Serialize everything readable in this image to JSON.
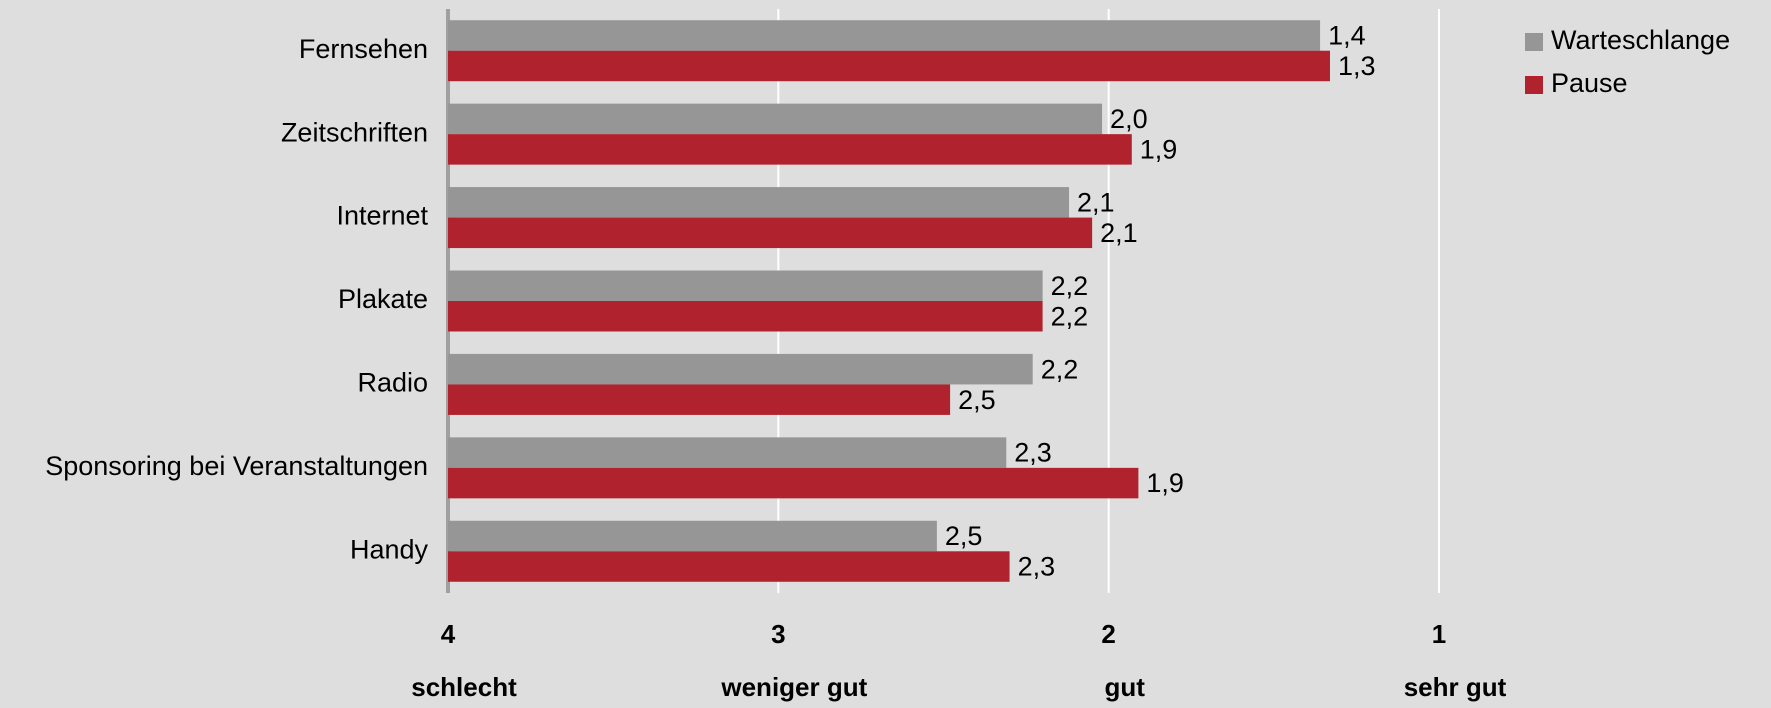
{
  "chart_data": {
    "type": "barh",
    "categories": [
      "Fernsehen",
      "Zeitschriften",
      "Internet",
      "Plakate",
      "Radio",
      "Sponsoring bei Veranstaltungen",
      "Handy"
    ],
    "series": [
      {
        "name": "Warteschlange",
        "color": "#969696",
        "values": [
          1.36,
          2.02,
          2.12,
          2.2,
          2.23,
          2.31,
          2.52
        ],
        "value_labels": [
          "1,4",
          "2,0",
          "2,1",
          "2,2",
          "2,2",
          "2,3",
          "2,5"
        ]
      },
      {
        "name": "Pause",
        "color": "#b0232e",
        "values": [
          1.33,
          1.93,
          2.05,
          2.2,
          2.48,
          1.91,
          2.3
        ],
        "value_labels": [
          "1,3",
          "1,9",
          "2,1",
          "2,2",
          "2,5",
          "1,9",
          "2,3"
        ]
      }
    ],
    "xlim": [
      4,
      1
    ],
    "xticks": [
      4,
      3,
      2,
      1
    ],
    "xtick_descriptions": [
      "schlecht",
      "weniger gut",
      "gut",
      "sehr gut"
    ],
    "grid": true,
    "legend": "top-right"
  }
}
